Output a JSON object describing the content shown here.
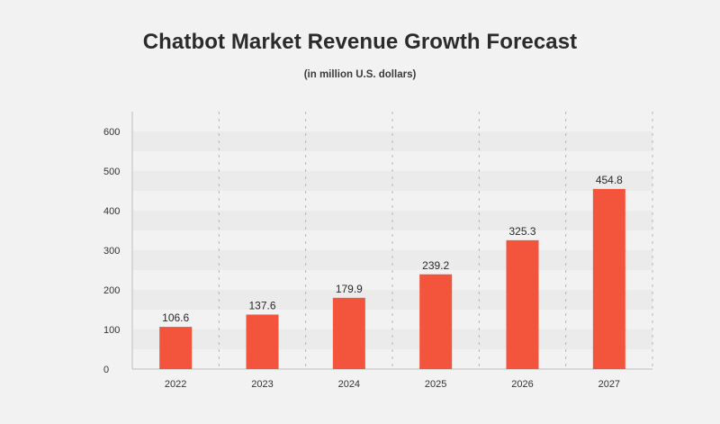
{
  "chart_data": {
    "type": "bar",
    "title": "Chatbot Market Revenue Growth Forecast",
    "subtitle": "(in million U.S. dollars)",
    "categories": [
      "2022",
      "2023",
      "2024",
      "2025",
      "2026",
      "2027"
    ],
    "values": [
      106.6,
      137.6,
      179.9,
      239.2,
      325.3,
      454.8
    ],
    "value_labels": [
      "106.6",
      "137.6",
      "179.9",
      "239.2",
      "325.3",
      "454.8"
    ],
    "y_ticks": [
      0,
      100,
      200,
      300,
      400,
      500,
      600
    ],
    "ylim": [
      0,
      650
    ],
    "xlabel": "",
    "ylabel": "",
    "grid": "alternating horizontal bands with dashed vertical separators",
    "legend": "none",
    "colors": {
      "bar": "#f2553c",
      "background": "#f2f2f2",
      "band": "#ebebeb",
      "axis": "#bdbdbd"
    }
  }
}
